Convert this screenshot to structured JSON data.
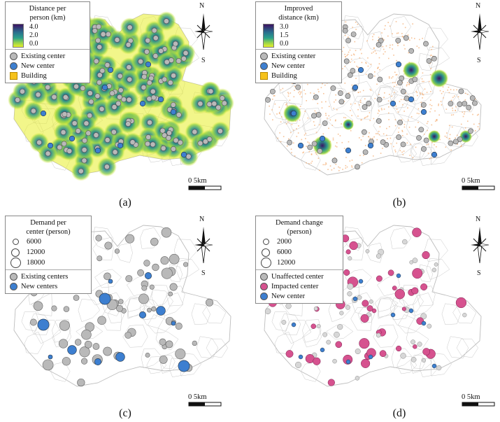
{
  "panels": {
    "a": {
      "caption": "(a)",
      "legend_title_1": "Distance per",
      "legend_title_2": "person (km)",
      "ramp_labels": [
        "4.0",
        "2.0",
        "0.0"
      ],
      "items": [
        "Existing center",
        "New center",
        "Building"
      ]
    },
    "b": {
      "caption": "(b)",
      "legend_title_1": "Improved",
      "legend_title_2": "distance (km)",
      "ramp_labels": [
        "3.0",
        "1.5",
        "0.0"
      ],
      "items": [
        "Existing center",
        "New center",
        "Building"
      ]
    },
    "c": {
      "caption": "(c)",
      "legend_title_1": "Demand per",
      "legend_title_2": "center (person)",
      "sizes": [
        "6000",
        "12000",
        "18000"
      ],
      "items": [
        "Existing centers",
        "New centers"
      ]
    },
    "d": {
      "caption": "(d)",
      "legend_title_1": "Demand change",
      "legend_title_2": "(person)",
      "sizes": [
        "2000",
        "6000",
        "12000"
      ],
      "items": [
        "Unaffected center",
        "Impacted center",
        "New center"
      ]
    }
  },
  "compass": {
    "north": "N",
    "south": "S"
  },
  "scale_label": "0 5km",
  "colors": {
    "existing_center": "#b9b9b9",
    "new_center": "#3d7fd0",
    "impacted_center": "#d6528f",
    "building": "#f6c21b",
    "building_scatter": "#f4a86a",
    "ramp_high": "#3b1463",
    "ramp_mid": "#2a8f8a",
    "ramp_low": "#e8ef2a",
    "boundary": "#c8c8c8"
  }
}
